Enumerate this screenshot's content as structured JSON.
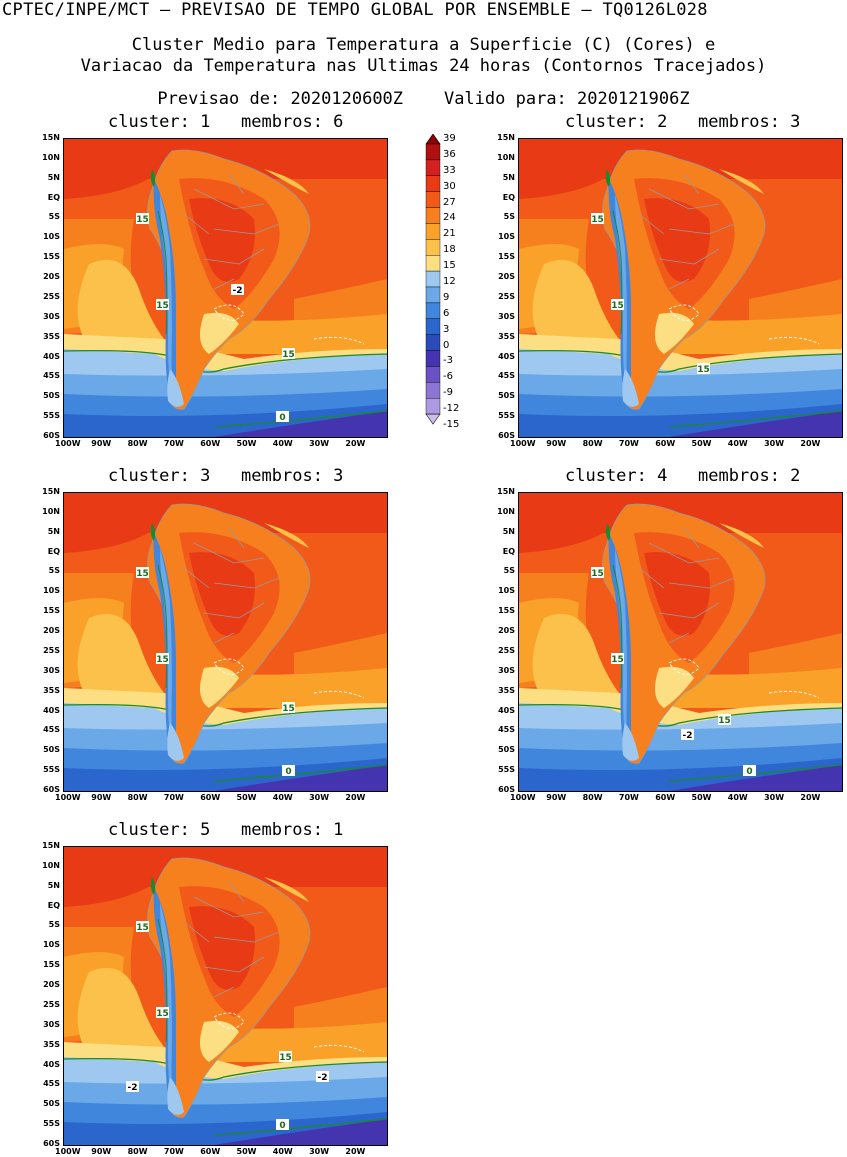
{
  "header": {
    "line1": "CPTEC/INPE/MCT – PREVISAO DE TEMPO GLOBAL POR ENSEMBLE – TQ0126L028",
    "line2": "Cluster Medio para Temperatura a Superficie (C) (Cores) e",
    "line3": "Variacao da Temperatura nas Ultimas 24 horas (Contornos Tracejados)",
    "line4": "Previsao de: 2020120600Z    Valido para: 2020121906Z"
  },
  "lat_labels": [
    "15N",
    "10N",
    "5N",
    "EQ",
    "5S",
    "10S",
    "15S",
    "20S",
    "25S",
    "30S",
    "35S",
    "40S",
    "45S",
    "50S",
    "55S",
    "60S"
  ],
  "lon_labels": [
    "100W",
    "90W",
    "80W",
    "70W",
    "60W",
    "50W",
    "40W",
    "30W",
    "20W"
  ],
  "colorbar": {
    "levels": [
      "39",
      "36",
      "33",
      "30",
      "27",
      "24",
      "21",
      "18",
      "15",
      "12",
      "9",
      "6",
      "3",
      "0",
      "-3",
      "-6",
      "-9",
      "-12",
      "-15"
    ],
    "colors": [
      "#8b0000",
      "#b01010",
      "#d42020",
      "#e83a14",
      "#f25a1a",
      "#f7801e",
      "#faa12a",
      "#fbc14a",
      "#fbdf82",
      "#9ec8f0",
      "#6aa8e8",
      "#3f86dc",
      "#2a66cc",
      "#2b4cb8",
      "#4434b0",
      "#6a52c4",
      "#8c76d4",
      "#ad9ae0",
      "#cbbdea"
    ]
  },
  "panels": [
    {
      "title": "cluster: 1   membros: 6",
      "labels": [
        "15",
        "15",
        "15",
        "-2",
        "0"
      ]
    },
    {
      "title": "cluster: 2   membros: 3",
      "labels": [
        "15",
        "15",
        "15"
      ]
    },
    {
      "title": "cluster: 3   membros: 3",
      "labels": [
        "15",
        "15",
        "15",
        "0"
      ]
    },
    {
      "title": "cluster: 4   membros: 2",
      "labels": [
        "15",
        "15",
        "15",
        "-2",
        "0"
      ]
    },
    {
      "title": "cluster: 5   membros: 1",
      "labels": [
        "15",
        "15",
        "15",
        "-2",
        "-2",
        "0"
      ]
    }
  ]
}
